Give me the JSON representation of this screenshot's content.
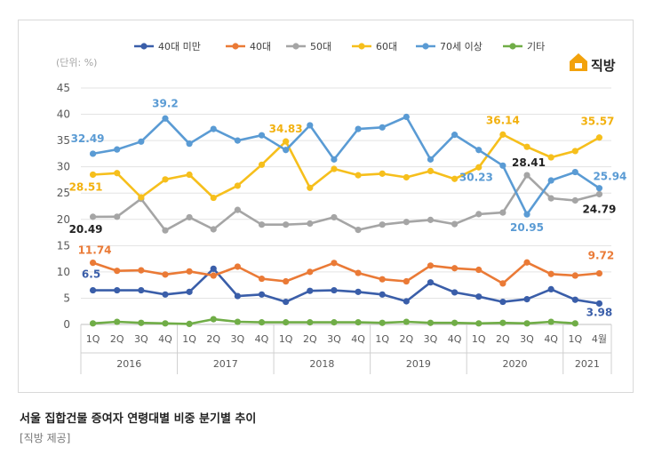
{
  "caption": {
    "title": "서울 집합건물 증여자 연령대별 비중 분기별 추이",
    "credit": "[직방 제공]"
  },
  "brand": {
    "name": "직방",
    "color": "#222222",
    "icon_color": "#f2a20c"
  },
  "chart_data": {
    "type": "line",
    "unit_label": "(단위: %)",
    "ylim": [
      0,
      45
    ],
    "yticks": [
      0,
      5,
      10,
      15,
      20,
      25,
      30,
      35,
      40,
      45
    ],
    "grid": true,
    "legend_position": "top",
    "categories": [
      "1Q",
      "2Q",
      "3Q",
      "4Q",
      "1Q",
      "2Q",
      "3Q",
      "4Q",
      "1Q",
      "2Q",
      "3Q",
      "4Q",
      "1Q",
      "2Q",
      "3Q",
      "4Q",
      "1Q",
      "2Q",
      "3Q",
      "4Q",
      "1Q",
      "4월"
    ],
    "years": [
      {
        "label": "2016",
        "span": 4
      },
      {
        "label": "2017",
        "span": 4
      },
      {
        "label": "2018",
        "span": 4
      },
      {
        "label": "2019",
        "span": 4
      },
      {
        "label": "2020",
        "span": 4
      },
      {
        "label": "2021",
        "span": 2
      }
    ],
    "series": [
      {
        "name": "40대 미만",
        "color": "#3a5ea9",
        "values": [
          6.5,
          6.5,
          6.5,
          5.7,
          6.2,
          10.6,
          5.4,
          5.7,
          4.3,
          6.4,
          6.5,
          6.2,
          5.7,
          4.4,
          8.0,
          6.1,
          5.3,
          4.3,
          4.8,
          6.7,
          4.7,
          3.98
        ]
      },
      {
        "name": "40대",
        "color": "#ea7a36",
        "values": [
          11.74,
          10.2,
          10.3,
          9.5,
          10.1,
          9.3,
          11.0,
          8.7,
          8.2,
          10.0,
          11.7,
          9.8,
          8.6,
          8.2,
          11.2,
          10.7,
          10.4,
          7.8,
          11.8,
          9.6,
          9.3,
          9.72
        ]
      },
      {
        "name": "50대",
        "color": "#a5a5a5",
        "values": [
          20.49,
          20.5,
          23.9,
          17.9,
          20.4,
          18.1,
          21.8,
          19.0,
          19.0,
          19.2,
          20.4,
          18.0,
          19.0,
          19.5,
          19.9,
          19.1,
          21.0,
          21.3,
          28.41,
          24.0,
          23.6,
          24.79
        ]
      },
      {
        "name": "60대",
        "color": "#f6bf1c",
        "values": [
          28.51,
          28.8,
          24.2,
          27.6,
          28.5,
          24.1,
          26.4,
          30.4,
          34.83,
          26.0,
          29.6,
          28.4,
          28.7,
          28.0,
          29.2,
          27.7,
          29.9,
          36.14,
          33.8,
          31.8,
          33.0,
          35.57
        ]
      },
      {
        "name": "70세 이상",
        "color": "#5a9bd4",
        "values": [
          32.49,
          33.3,
          34.8,
          39.2,
          34.4,
          37.2,
          35.0,
          36.0,
          33.2,
          37.9,
          31.4,
          37.2,
          37.5,
          39.5,
          31.4,
          36.1,
          33.2,
          30.23,
          20.95,
          27.4,
          29.0,
          25.94
        ]
      },
      {
        "name": "기타",
        "color": "#70ad47",
        "values": [
          0.2,
          0.5,
          0.3,
          0.2,
          0.1,
          1.0,
          0.5,
          0.4,
          0.4,
          0.4,
          0.4,
          0.4,
          0.3,
          0.5,
          0.3,
          0.3,
          0.2,
          0.3,
          0.2,
          0.5,
          0.2,
          null
        ]
      }
    ],
    "data_labels": [
      {
        "series": 0,
        "index": 0,
        "text": "6.5",
        "color": "#3a5ea9"
      },
      {
        "series": 0,
        "index": 21,
        "text": "3.98",
        "color": "#3a5ea9"
      },
      {
        "series": 1,
        "index": 0,
        "text": "11.74",
        "color": "#ea7a36"
      },
      {
        "series": 1,
        "index": 21,
        "text": "9.72",
        "color": "#ea7a36"
      },
      {
        "series": 2,
        "index": 0,
        "text": "20.49",
        "color": "#222222"
      },
      {
        "series": 2,
        "index": 18,
        "text": "28.41",
        "color": "#222222"
      },
      {
        "series": 2,
        "index": 21,
        "text": "24.79",
        "color": "#222222"
      },
      {
        "series": 3,
        "index": 0,
        "text": "28.51",
        "color": "#f2b10f"
      },
      {
        "series": 3,
        "index": 8,
        "text": "34.83",
        "color": "#f2b10f"
      },
      {
        "series": 3,
        "index": 17,
        "text": "36.14",
        "color": "#f2b10f"
      },
      {
        "series": 3,
        "index": 21,
        "text": "35.57",
        "color": "#f2b10f"
      },
      {
        "series": 4,
        "index": 0,
        "text": "32.49",
        "color": "#5a9bd4"
      },
      {
        "series": 4,
        "index": 3,
        "text": "39.2",
        "color": "#5a9bd4"
      },
      {
        "series": 4,
        "index": 17,
        "text": "30.23",
        "color": "#5a9bd4"
      },
      {
        "series": 4,
        "index": 18,
        "text": "20.95",
        "color": "#5a9bd4"
      },
      {
        "series": 4,
        "index": 21,
        "text": "25.94",
        "color": "#5a9bd4"
      }
    ]
  }
}
